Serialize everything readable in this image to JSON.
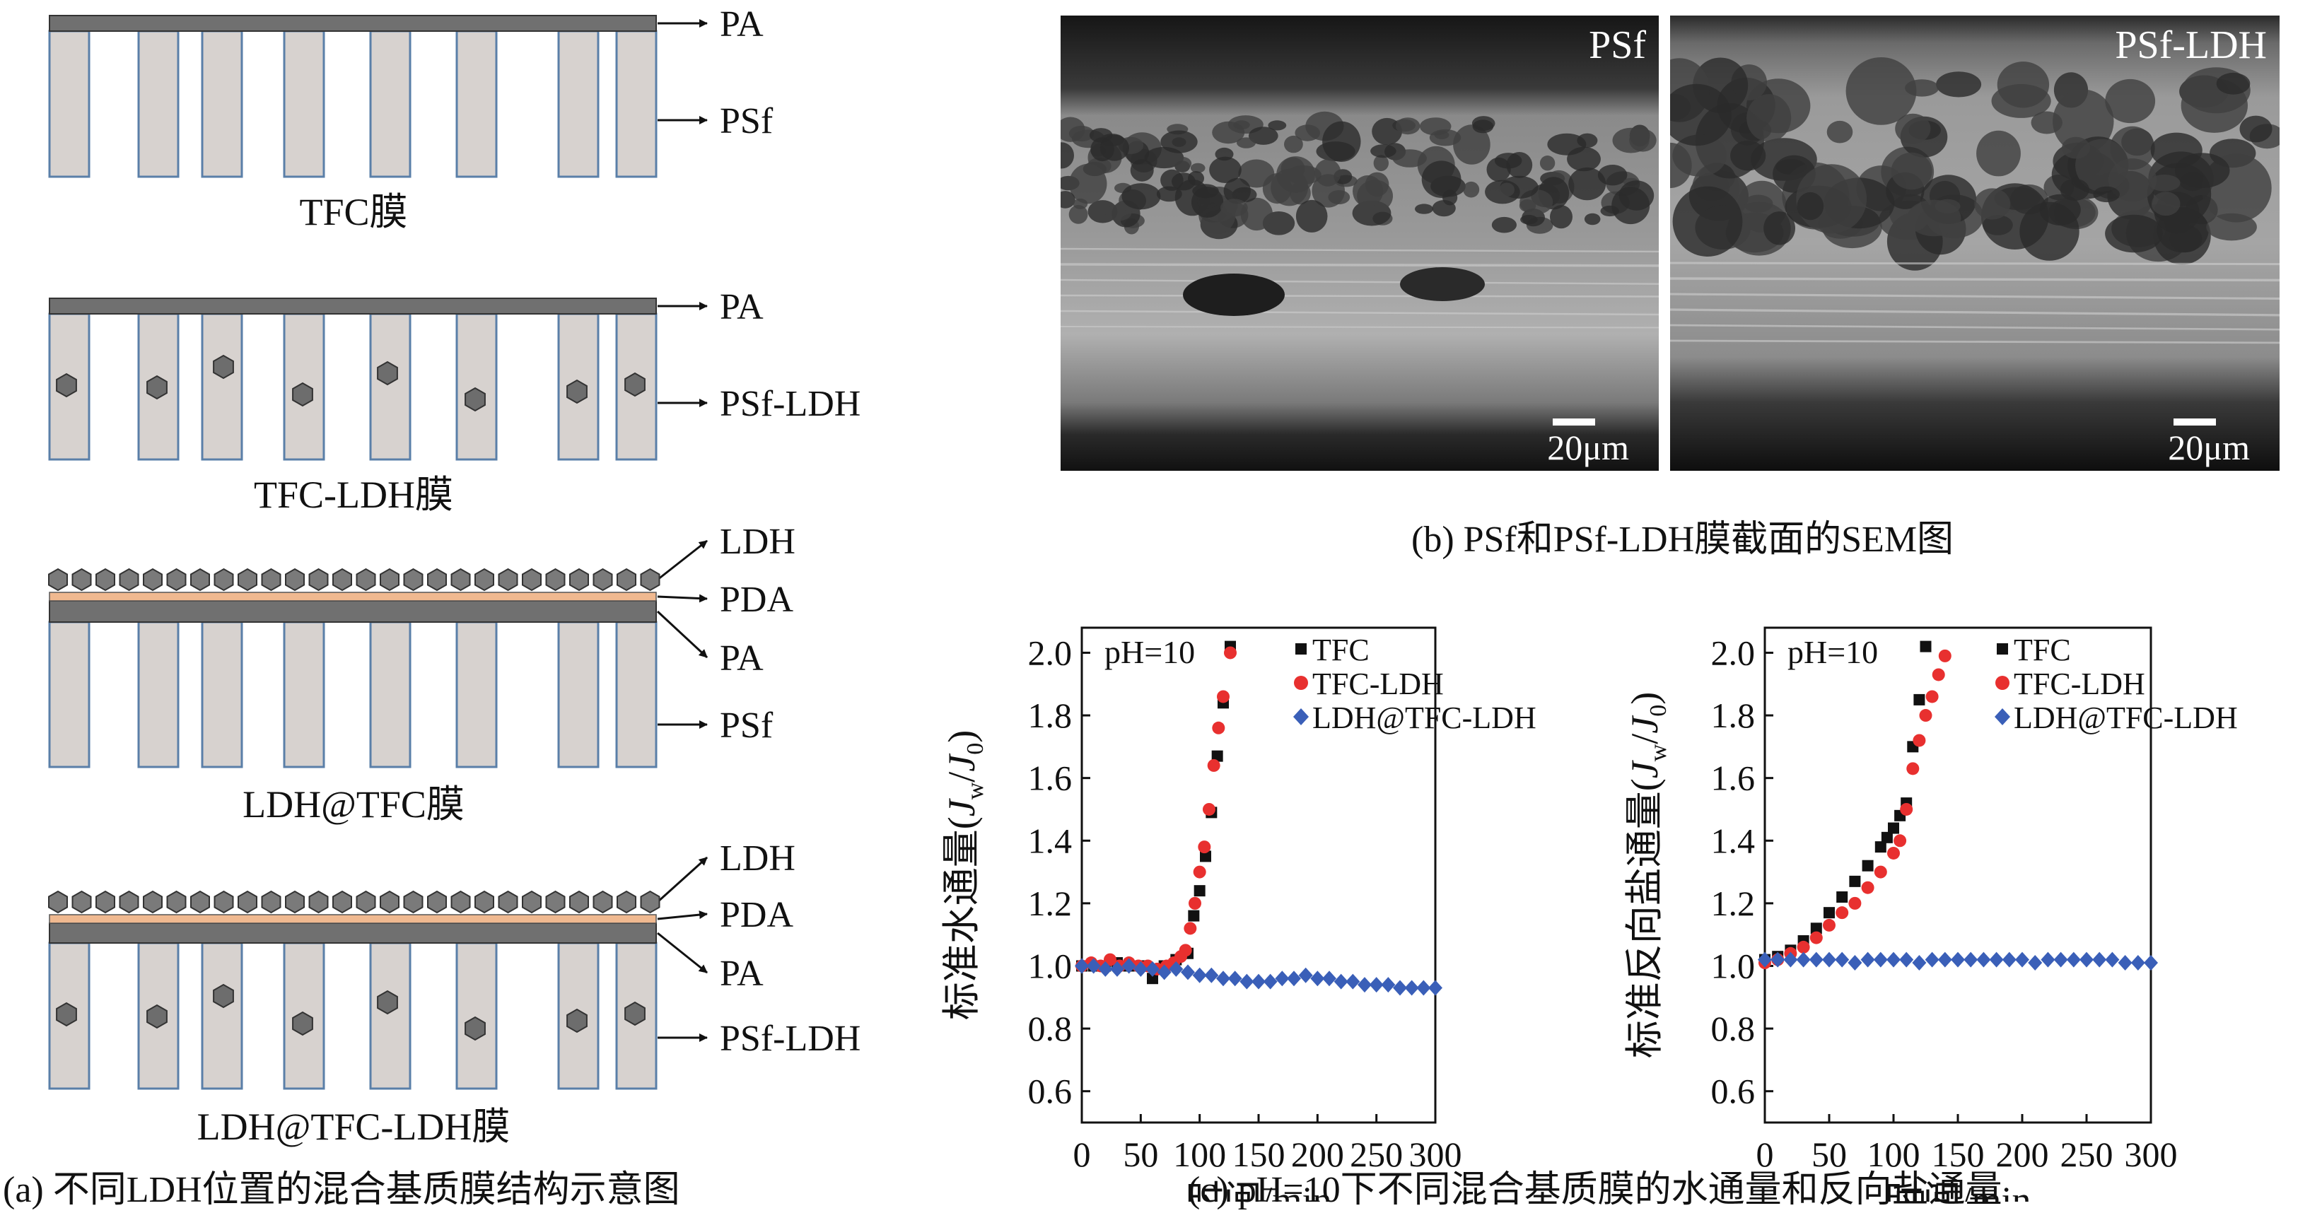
{
  "panel_a": {
    "diagrams": [
      {
        "title": "TFC膜",
        "labels": [
          "PA",
          "PSf"
        ]
      },
      {
        "title": "TFC-LDH膜",
        "labels": [
          "PA",
          "PSf-LDH"
        ]
      },
      {
        "title": "LDH@TFC膜",
        "labels": [
          "LDH",
          "PDA",
          "PA",
          "PSf"
        ]
      },
      {
        "title": "LDH@TFC-LDH膜",
        "labels": [
          "LDH",
          "PDA",
          "PA",
          "PSf-LDH"
        ]
      }
    ],
    "caption": "(a) 不同LDH位置的混合基质膜结构示意图"
  },
  "panel_b": {
    "left_label": "PSf",
    "right_label": "PSf-LDH",
    "scale_left": "20μm",
    "scale_right": "20μm",
    "caption": "(b) PSf和PSf-LDH膜截面的SEM图"
  },
  "panel_c": {
    "caption": "(c) pH=10下不同混合基质膜的水通量和反向盐通量"
  },
  "colors": {
    "tfc": "#111111",
    "tfc_ldh": "#e8302f",
    "ldh_tfc_ldh": "#3a5fb8",
    "column_fill": "#d7d2cf",
    "pa_layer": "#707070",
    "pda_layer": "#f0b990",
    "particle": "#6d6d6d"
  },
  "chart_data": [
    {
      "type": "scatter",
      "annotation": "pH=10",
      "xlabel": "时间/min",
      "ylabel": "标准水通量(J_w/J_0)",
      "ylabel_parts": {
        "main": "标准水通量(",
        "J": "J",
        "sub_w": "w",
        "slash": "/",
        "sub_0": "0",
        "close": ")"
      },
      "xlim": [
        0,
        300
      ],
      "ylim": [
        0.5,
        2.08
      ],
      "xticks": [
        "0",
        "50",
        "100",
        "150",
        "200",
        "250",
        "300"
      ],
      "yticks": [
        "0.6",
        "0.8",
        "1.0",
        "1.2",
        "1.4",
        "1.6",
        "1.8",
        "2.0"
      ],
      "legend_position": "top-right",
      "series": [
        {
          "name": "TFC",
          "marker": "square",
          "x": [
            0,
            10,
            20,
            30,
            40,
            50,
            60,
            70,
            80,
            90,
            95,
            100,
            105,
            110,
            115,
            120,
            126
          ],
          "y": [
            1.0,
            1.0,
            1.0,
            1.01,
            1.0,
            1.0,
            0.96,
            1.0,
            1.02,
            1.04,
            1.16,
            1.24,
            1.35,
            1.49,
            1.67,
            1.84,
            2.02
          ]
        },
        {
          "name": "TFC-LDH",
          "marker": "circle",
          "x": [
            0,
            8,
            16,
            24,
            32,
            40,
            48,
            56,
            64,
            72,
            78,
            84,
            88,
            92,
            96,
            100,
            104,
            108,
            112,
            116,
            120,
            126
          ],
          "y": [
            1.0,
            1.01,
            1.0,
            1.02,
            1.0,
            1.01,
            1.0,
            1.0,
            0.99,
            1.0,
            1.01,
            1.03,
            1.05,
            1.12,
            1.2,
            1.3,
            1.38,
            1.5,
            1.64,
            1.76,
            1.86,
            2.0
          ]
        },
        {
          "name": "LDH@TFC-LDH",
          "marker": "diamond",
          "x": [
            0,
            10,
            20,
            30,
            40,
            50,
            60,
            70,
            80,
            90,
            100,
            110,
            120,
            130,
            140,
            150,
            160,
            170,
            180,
            190,
            200,
            210,
            220,
            230,
            240,
            250,
            260,
            270,
            280,
            290,
            300
          ],
          "y": [
            1.0,
            1.0,
            0.99,
            0.99,
            1.0,
            0.99,
            0.99,
            0.98,
            0.99,
            0.98,
            0.97,
            0.97,
            0.96,
            0.96,
            0.95,
            0.95,
            0.95,
            0.96,
            0.96,
            0.97,
            0.96,
            0.96,
            0.95,
            0.95,
            0.94,
            0.94,
            0.94,
            0.93,
            0.93,
            0.93,
            0.93
          ]
        }
      ]
    },
    {
      "type": "scatter",
      "annotation": "pH=10",
      "xlabel": "时间/min",
      "ylabel": "标准反向盐通量(J_w/J_0)",
      "ylabel_parts": {
        "main": "标准反向盐通量(",
        "J": "J",
        "sub_w": "w",
        "slash": "/",
        "sub_0": "0",
        "close": ")"
      },
      "xlim": [
        0,
        300
      ],
      "ylim": [
        0.5,
        2.08
      ],
      "xticks": [
        "0",
        "50",
        "100",
        "150",
        "200",
        "250",
        "300"
      ],
      "yticks": [
        "0.6",
        "0.8",
        "1.0",
        "1.2",
        "1.4",
        "1.6",
        "1.8",
        "2.0"
      ],
      "legend_position": "top-right",
      "series": [
        {
          "name": "TFC",
          "marker": "square",
          "x": [
            0,
            10,
            20,
            30,
            40,
            50,
            60,
            70,
            80,
            90,
            95,
            100,
            105,
            110,
            115,
            120,
            125
          ],
          "y": [
            1.02,
            1.03,
            1.05,
            1.08,
            1.12,
            1.17,
            1.22,
            1.27,
            1.32,
            1.38,
            1.41,
            1.44,
            1.48,
            1.52,
            1.7,
            1.85,
            2.02
          ]
        },
        {
          "name": "TFC-LDH",
          "marker": "circle",
          "x": [
            0,
            10,
            20,
            30,
            40,
            50,
            60,
            70,
            80,
            90,
            100,
            105,
            110,
            115,
            120,
            125,
            130,
            135,
            140
          ],
          "y": [
            1.01,
            1.02,
            1.04,
            1.06,
            1.09,
            1.13,
            1.17,
            1.2,
            1.25,
            1.3,
            1.36,
            1.4,
            1.5,
            1.63,
            1.72,
            1.8,
            1.86,
            1.93,
            1.99
          ]
        },
        {
          "name": "LDH@TFC-LDH",
          "marker": "diamond",
          "x": [
            0,
            10,
            20,
            30,
            40,
            50,
            60,
            70,
            80,
            90,
            100,
            110,
            120,
            130,
            140,
            150,
            160,
            170,
            180,
            190,
            200,
            210,
            220,
            230,
            240,
            250,
            260,
            270,
            280,
            290,
            300
          ],
          "y": [
            1.02,
            1.02,
            1.02,
            1.02,
            1.02,
            1.02,
            1.02,
            1.01,
            1.02,
            1.02,
            1.02,
            1.02,
            1.01,
            1.02,
            1.02,
            1.02,
            1.02,
            1.02,
            1.02,
            1.02,
            1.02,
            1.01,
            1.02,
            1.02,
            1.02,
            1.02,
            1.02,
            1.02,
            1.01,
            1.01,
            1.01
          ]
        }
      ]
    }
  ]
}
